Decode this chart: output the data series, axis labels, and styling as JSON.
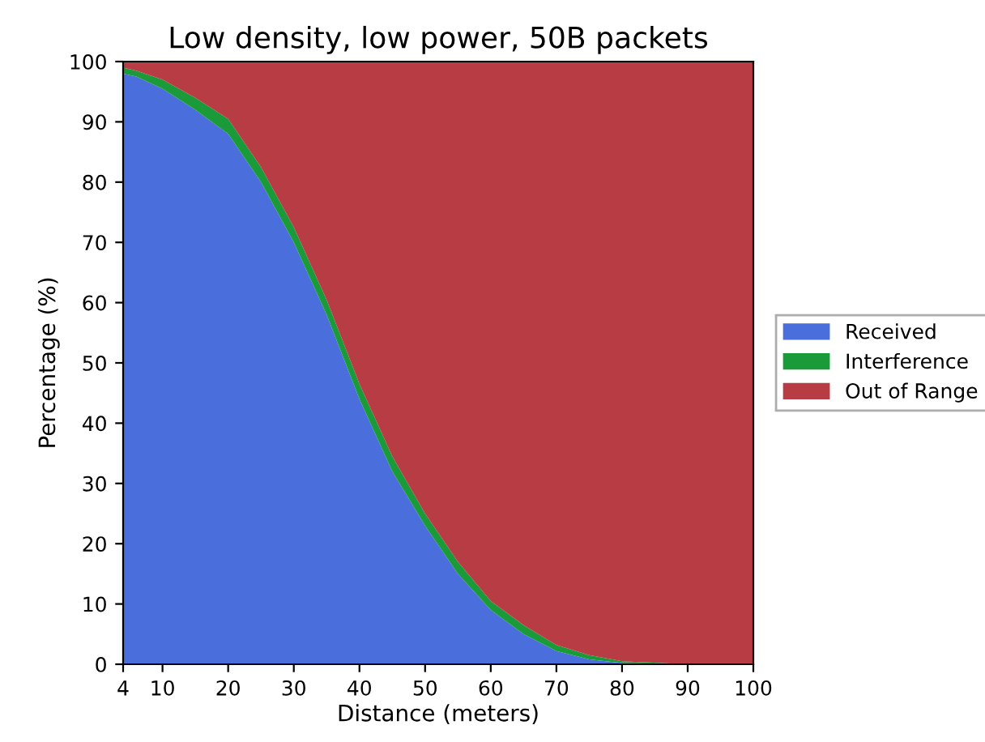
{
  "chart_data": {
    "type": "area",
    "stacked": true,
    "title": "Low density, low power, 50B packets",
    "xlabel": "Distance (meters)",
    "ylabel": "Percentage (%)",
    "x": [
      4,
      6,
      10,
      15,
      20,
      25,
      30,
      35,
      40,
      45,
      50,
      55,
      60,
      65,
      70,
      75,
      80,
      90,
      100
    ],
    "series": [
      {
        "name": "Received",
        "color": "#4a6fdc",
        "values": [
          98,
          97.5,
          95.5,
          92,
          88,
          80,
          70,
          58,
          44,
          32,
          23,
          15,
          9,
          5,
          2.2,
          0.8,
          0.2,
          0,
          0
        ]
      },
      {
        "name": "Interference",
        "color": "#1a9a38",
        "values": [
          1,
          1,
          1.5,
          2,
          2.5,
          2.5,
          2.5,
          2.5,
          2.5,
          2.5,
          2,
          2,
          1.5,
          1.5,
          1,
          0.7,
          0.3,
          0,
          0
        ]
      },
      {
        "name": "Out of Range",
        "color": "#b83c44",
        "values": [
          1,
          1.5,
          3,
          6,
          9.5,
          17.5,
          27.5,
          39.5,
          53.5,
          65.5,
          75,
          83,
          89.5,
          93.5,
          96.8,
          98.5,
          99.5,
          100,
          100
        ]
      }
    ],
    "xlim": [
      4,
      100
    ],
    "ylim": [
      0,
      100
    ],
    "xticks": [
      4,
      10,
      20,
      30,
      40,
      50,
      60,
      70,
      80,
      90,
      100
    ],
    "yticks": [
      0,
      10,
      20,
      30,
      40,
      50,
      60,
      70,
      80,
      90,
      100
    ],
    "grid": false,
    "legend": "right"
  }
}
